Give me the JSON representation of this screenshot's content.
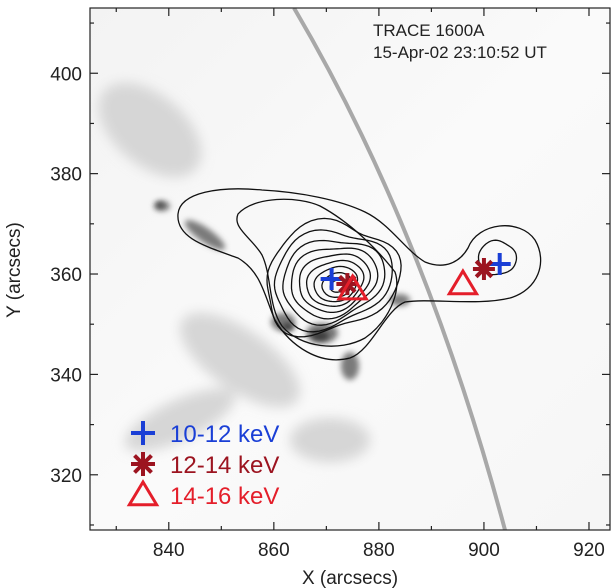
{
  "chart_data": {
    "type": "scatter",
    "annotations": [
      "TRACE 1600A",
      "15-Apr-02 23:10:52 UT"
    ],
    "xlabel": "X (arcsecs)",
    "ylabel": "Y (arcsecs)",
    "xlim": [
      825,
      924
    ],
    "ylim": [
      309,
      413
    ],
    "x_ticks": [
      840,
      860,
      880,
      900,
      920
    ],
    "y_ticks": [
      320,
      340,
      360,
      380,
      400
    ],
    "x_tick_labels": [
      "840",
      "860",
      "880",
      "900",
      "920"
    ],
    "y_tick_labels": [
      "320",
      "340",
      "360",
      "380",
      "400"
    ],
    "grid": false,
    "legend_position": "bottom-left",
    "colors": {
      "10-12 keV": "#1a3fd6",
      "12-14 keV": "#9c1420",
      "14-16 keV": "#e41e2a",
      "contour": "#111111"
    },
    "series": [
      {
        "name": "10-12 keV",
        "marker": "plus",
        "points": [
          [
            871,
            359
          ],
          [
            903,
            362
          ]
        ]
      },
      {
        "name": "12-14 keV",
        "marker": "asterisk",
        "points": [
          [
            874,
            358
          ],
          [
            900,
            361
          ]
        ]
      },
      {
        "name": "14-16 keV",
        "marker": "triangle",
        "points": [
          [
            875,
            357
          ],
          [
            896,
            358
          ]
        ]
      }
    ]
  }
}
